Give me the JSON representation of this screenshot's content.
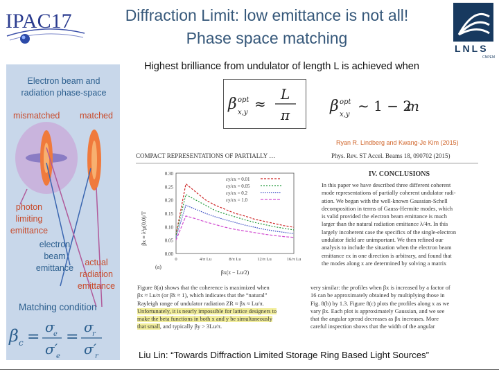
{
  "header": {
    "conference": "IPAC17",
    "title_line1": "Diffraction Limit: low emittance is not all!",
    "title_line2": "Phase space matching",
    "lab_logo_text": "LNLS",
    "lab_logo_sub": "CNPEM"
  },
  "sidebar": {
    "heading": [
      "Electron beam and",
      "radiation phase-space"
    ],
    "mismatched": "mismatched",
    "matched": "matched",
    "photon": [
      "photon",
      "limiting",
      "emittance"
    ],
    "electron": [
      "electron",
      "beam",
      "emittance"
    ],
    "actual": [
      "actual",
      "radiation",
      "emittance"
    ],
    "matching": "Matching condition"
  },
  "main": {
    "headline": "Highest brilliance from undulator of length L is achieved when",
    "citation": "Ryan R. Lindberg and Kwang-Je Kim (2015)"
  },
  "paper": {
    "running_title": "COMPACT REPRESENTATIONS OF PARTIALLY …",
    "journal_ref": "Phys. Rev. ST Accel. Beams 18, 090702 (2015)",
    "section_title": "IV. CONCLUSIONS",
    "conclusions_lines": [
      "In this paper we have described three different coherent",
      "mode representations of partially coherent undulator radi-",
      "ation. We began with the well-known Gaussian-Schell",
      "decomposition in terms of Gauss-Hermite modes, which",
      "is valid provided the electron beam emittance is much",
      "larger than the natural radiation emittance λ/4π. In this",
      "largely incoherent case the specifics of the single-electron",
      "undulator field are unimportant. We then refined our",
      "analysis to include the situation when the electron beam",
      "emittance εx in one direction is arbitrary, and found that",
      "the modes along x are determined by solving a matrix"
    ],
    "fig_caption_lines": [
      "Figure 8(a) shows that the coherence is maximized when",
      "βx ≈ Lu/π (or β̃x ≈ 1), which indicates that the “natural”",
      "Rayleigh range of undulator radiation ZR ≈ βx ≈ Lu/π."
    ],
    "highlighted_lines": [
      "Unfortunately, it is nearly impossible for lattice designers to",
      "make the beta functions in both x and y be simultaneously",
      "that small"
    ],
    "fig_caption_tail": ", and typically βy > 3Lu/π.",
    "right_col_lines": [
      "very similar: the profiles when βx is increased by a factor of",
      "16 can be approximately obtained by multiplying those in",
      "Fig. 8(b) by 1.3. Figure 8(c) plots the profiles along x as we",
      "vary βx. Each plot is approximately Gaussian, and we see",
      "that the angular spread decreases as βx increases. More",
      "careful inspection shows that the width of the angular"
    ]
  },
  "chart_data": {
    "type": "line",
    "panel_label": "(a)",
    "ylabel": "βx ≡ λ²μ(0,0)/T",
    "xlabel": "βx(z − Lu/2)",
    "x_ticks": [
      "0",
      "4/π Lu",
      "8/π Lu",
      "12/π Lu",
      "16/π Lu"
    ],
    "y_ticks": [
      "0.00",
      "0.05",
      "0.10",
      "0.15",
      "0.20",
      "0.25",
      "0.30"
    ],
    "x": [
      0.0,
      0.5,
      1.0,
      1.5,
      2.0,
      2.5,
      3.0,
      3.5,
      4.0,
      4.5,
      5.0,
      5.5,
      6.0
    ],
    "ylim": [
      0.0,
      0.3
    ],
    "series": [
      {
        "name": "εy/εx = 0.01",
        "color": "#cc2222",
        "values": [
          0.07,
          0.26,
          0.23,
          0.2,
          0.18,
          0.165,
          0.15,
          0.14,
          0.128,
          0.12,
          0.112,
          0.104,
          0.098
        ]
      },
      {
        "name": "εy/εx = 0.05",
        "color": "#22993a",
        "values": [
          0.07,
          0.22,
          0.2,
          0.18,
          0.16,
          0.148,
          0.137,
          0.126,
          0.116,
          0.108,
          0.1,
          0.094,
          0.088
        ]
      },
      {
        "name": "εy/εx = 0.2",
        "color": "#2a3fbf",
        "values": [
          0.06,
          0.18,
          0.165,
          0.15,
          0.137,
          0.126,
          0.116,
          0.106,
          0.098,
          0.09,
          0.084,
          0.079,
          0.074
        ]
      },
      {
        "name": "εy/εx = 1.0",
        "color": "#d04ad0",
        "values": [
          0.05,
          0.14,
          0.13,
          0.118,
          0.108,
          0.098,
          0.09,
          0.084,
          0.078,
          0.072,
          0.067,
          0.063,
          0.06
        ]
      }
    ]
  },
  "footer": {
    "caption": "Liu Lin: “Towards Diffraction Limited Storage Ring Based Light Sources”"
  }
}
